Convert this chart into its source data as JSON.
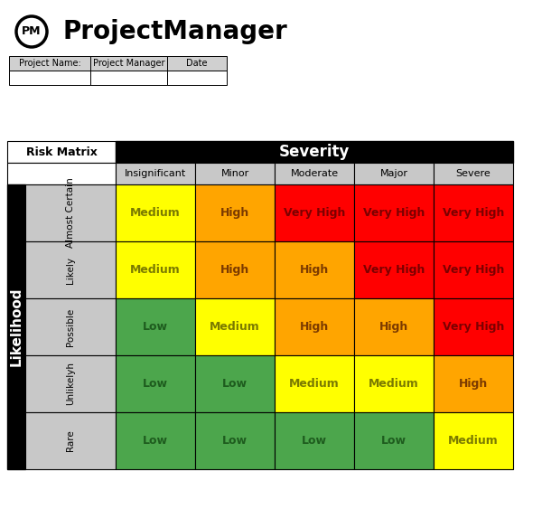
{
  "title": "ProjectManager",
  "header_fields": [
    "Project Name:",
    "Project Manager",
    "Date"
  ],
  "severity_label": "Severity",
  "likelihood_label": "Likelihood",
  "risk_matrix_label": "Risk Matrix",
  "severity_cols": [
    "Insignificant",
    "Minor",
    "Moderate",
    "Major",
    "Severe"
  ],
  "likelihood_rows": [
    "Almost Certain",
    "Likely",
    "Possible",
    "Unlikelyh",
    "Rare"
  ],
  "cell_labels": [
    [
      "Medium",
      "High",
      "Very High",
      "Very High",
      "Very High"
    ],
    [
      "Medium",
      "High",
      "High",
      "Very High",
      "Very High"
    ],
    [
      "Low",
      "Medium",
      "High",
      "High",
      "Very High"
    ],
    [
      "Low",
      "Low",
      "Medium",
      "Medium",
      "High"
    ],
    [
      "Low",
      "Low",
      "Low",
      "Low",
      "Medium"
    ]
  ],
  "cell_colors": [
    [
      "#FFFF00",
      "#FFA500",
      "#FF0000",
      "#FF0000",
      "#FF0000"
    ],
    [
      "#FFFF00",
      "#FFA500",
      "#FFA500",
      "#FF0000",
      "#FF0000"
    ],
    [
      "#4CA64C",
      "#FFFF00",
      "#FFA500",
      "#FFA500",
      "#FF0000"
    ],
    [
      "#4CA64C",
      "#4CA64C",
      "#FFFF00",
      "#FFFF00",
      "#FFA500"
    ],
    [
      "#4CA64C",
      "#4CA64C",
      "#4CA64C",
      "#4CA64C",
      "#FFFF00"
    ]
  ],
  "text_colors": [
    [
      "#7B7B00",
      "#7B3A00",
      "#7B0000",
      "#7B0000",
      "#7B0000"
    ],
    [
      "#7B7B00",
      "#7B3A00",
      "#7B3A00",
      "#7B0000",
      "#7B0000"
    ],
    [
      "#1E5C1E",
      "#7B7B00",
      "#7B3A00",
      "#7B3A00",
      "#7B0000"
    ],
    [
      "#1E5C1E",
      "#1E5C1E",
      "#7B7B00",
      "#7B7B00",
      "#7B3A00"
    ],
    [
      "#1E5C1E",
      "#1E5C1E",
      "#1E5C1E",
      "#1E5C1E",
      "#7B7B00"
    ]
  ],
  "black_header_bg": "#000000",
  "black_header_text": "#FFFFFF",
  "gray_col_header_bg": "#C8C8C8",
  "gray_col_header_text": "#000000",
  "white_bg": "#FFFFFF",
  "fig_width": 6.0,
  "fig_height": 5.84
}
